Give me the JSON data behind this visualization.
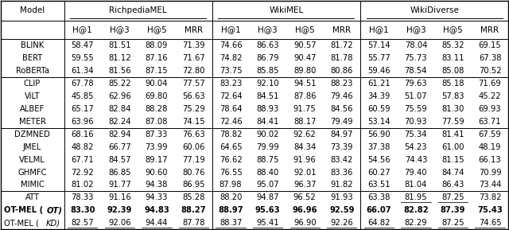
{
  "col_groups": [
    {
      "name": "RichpediaMEL",
      "cols": [
        "H@1",
        "H@3",
        "H@5",
        "MRR"
      ]
    },
    {
      "name": "WikiMEL",
      "cols": [
        "H@1",
        "H@3",
        "H@5",
        "MRR"
      ]
    },
    {
      "name": "WikiDiverse",
      "cols": [
        "H@1",
        "H@3",
        "H@5",
        "MRR"
      ]
    }
  ],
  "row_groups": [
    {
      "rows": [
        {
          "model": "BLINK",
          "vals": [
            58.47,
            81.51,
            88.09,
            71.39,
            74.66,
            86.63,
            90.57,
            81.72,
            57.14,
            78.04,
            85.32,
            69.15
          ]
        },
        {
          "model": "BERT",
          "vals": [
            59.55,
            81.12,
            87.16,
            71.67,
            74.82,
            86.79,
            90.47,
            81.78,
            55.77,
            75.73,
            83.11,
            67.38
          ]
        },
        {
          "model": "RoBERTa",
          "vals": [
            61.34,
            81.56,
            87.15,
            72.8,
            73.75,
            85.85,
            89.8,
            80.86,
            59.46,
            78.54,
            85.08,
            70.52
          ]
        }
      ]
    },
    {
      "rows": [
        {
          "model": "CLIP",
          "vals": [
            67.78,
            85.22,
            90.04,
            77.57,
            83.23,
            92.1,
            94.51,
            88.23,
            61.21,
            79.63,
            85.18,
            71.69
          ]
        },
        {
          "model": "ViLT",
          "vals": [
            45.85,
            62.96,
            69.8,
            56.63,
            72.64,
            84.51,
            87.86,
            79.46,
            34.39,
            51.07,
            57.83,
            45.22
          ]
        },
        {
          "model": "ALBEF",
          "vals": [
            65.17,
            82.84,
            88.28,
            75.29,
            78.64,
            88.93,
            91.75,
            84.56,
            60.59,
            75.59,
            81.3,
            69.93
          ]
        },
        {
          "model": "METER",
          "vals": [
            63.96,
            82.24,
            87.08,
            74.15,
            72.46,
            84.41,
            88.17,
            79.49,
            53.14,
            70.93,
            77.59,
            63.71
          ]
        }
      ]
    },
    {
      "rows": [
        {
          "model": "DZMNED",
          "vals": [
            68.16,
            82.94,
            87.33,
            76.63,
            78.82,
            90.02,
            92.62,
            84.97,
            56.9,
            75.34,
            81.41,
            67.59
          ]
        },
        {
          "model": "JMEL",
          "vals": [
            48.82,
            66.77,
            73.99,
            60.06,
            64.65,
            79.99,
            84.34,
            73.39,
            37.38,
            54.23,
            61.0,
            48.19
          ]
        },
        {
          "model": "VELML",
          "vals": [
            67.71,
            84.57,
            89.17,
            77.19,
            76.62,
            88.75,
            91.96,
            83.42,
            54.56,
            74.43,
            81.15,
            66.13
          ]
        },
        {
          "model": "GHMFC",
          "vals": [
            72.92,
            86.85,
            90.6,
            80.76,
            76.55,
            88.4,
            92.01,
            83.36,
            60.27,
            79.4,
            84.74,
            70.99
          ]
        },
        {
          "model": "MIMIC",
          "vals": [
            81.02,
            91.77,
            94.38,
            86.95,
            87.98,
            95.07,
            96.37,
            91.82,
            63.51,
            81.04,
            86.43,
            73.44
          ]
        }
      ]
    },
    {
      "rows": [
        {
          "model": "ATT",
          "vals": [
            78.33,
            91.16,
            94.33,
            85.28,
            88.2,
            94.87,
            96.52,
            91.93,
            63.38,
            81.95,
            87.25,
            73.82
          ],
          "bold": false,
          "underline_cols": [
            9,
            10
          ]
        },
        {
          "model": "OT-MEL (OT)",
          "vals": [
            83.3,
            92.39,
            94.83,
            88.27,
            88.97,
            95.63,
            96.96,
            92.59,
            66.07,
            82.82,
            87.39,
            75.43
          ],
          "bold": true,
          "underline_cols": []
        },
        {
          "model": "OT-MEL (KD)",
          "vals": [
            82.57,
            92.06,
            94.44,
            87.78,
            88.37,
            95.41,
            96.9,
            92.26,
            64.82,
            82.29,
            87.25,
            74.65
          ],
          "bold": false,
          "underline_cols": [
            0,
            1,
            2,
            3,
            4,
            5,
            6,
            7,
            8,
            9,
            10,
            11
          ]
        }
      ]
    }
  ],
  "font_size": 7.2,
  "header_font_size": 7.5
}
